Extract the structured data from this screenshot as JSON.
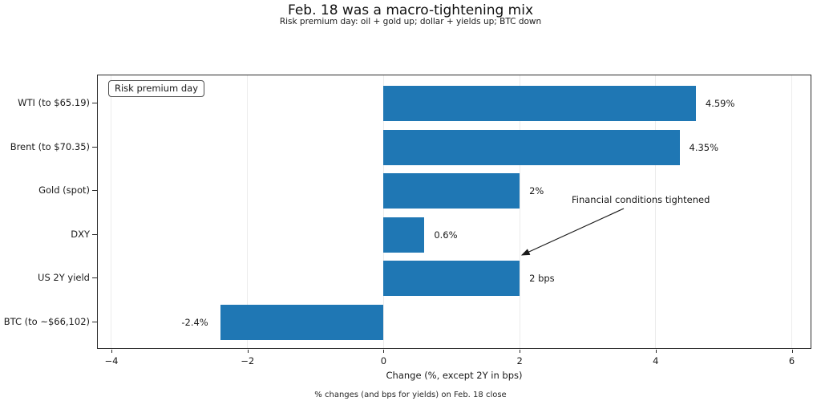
{
  "chart_data": {
    "type": "bar",
    "orientation": "horizontal",
    "title": "Feb. 18 was a macro-tightening mix",
    "subtitle": "Risk premium day: oil + gold up; dollar + yields up; BTC down",
    "categories": [
      "WTI (to $65.19)",
      "Brent (to $70.35)",
      "Gold (spot)",
      "DXY",
      "US 2Y yield",
      "BTC (to ~$66,102)"
    ],
    "values": [
      4.59,
      4.35,
      2.0,
      0.6,
      2.0,
      -2.4
    ],
    "value_labels": [
      "4.59%",
      "4.35%",
      "2%",
      "0.6%",
      "2 bps",
      "-2.4%"
    ],
    "bar_color": "#1f77b4",
    "xlabel": "Change (%, except 2Y in bps)",
    "caption": "% changes (and bps for yields) on Feb. 18 close",
    "xlim": [
      -4.2,
      6.3
    ],
    "xticks": [
      -4,
      -2,
      0,
      2,
      4,
      6
    ],
    "xtick_labels": [
      "−4",
      "−2",
      "0",
      "2",
      "4",
      "6"
    ],
    "grid": "vertical-light",
    "legend": "Risk premium day",
    "legend_position": "upper-left",
    "annotation": {
      "text": "Financial conditions tightened",
      "points_to": "US 2Y yield"
    }
  }
}
